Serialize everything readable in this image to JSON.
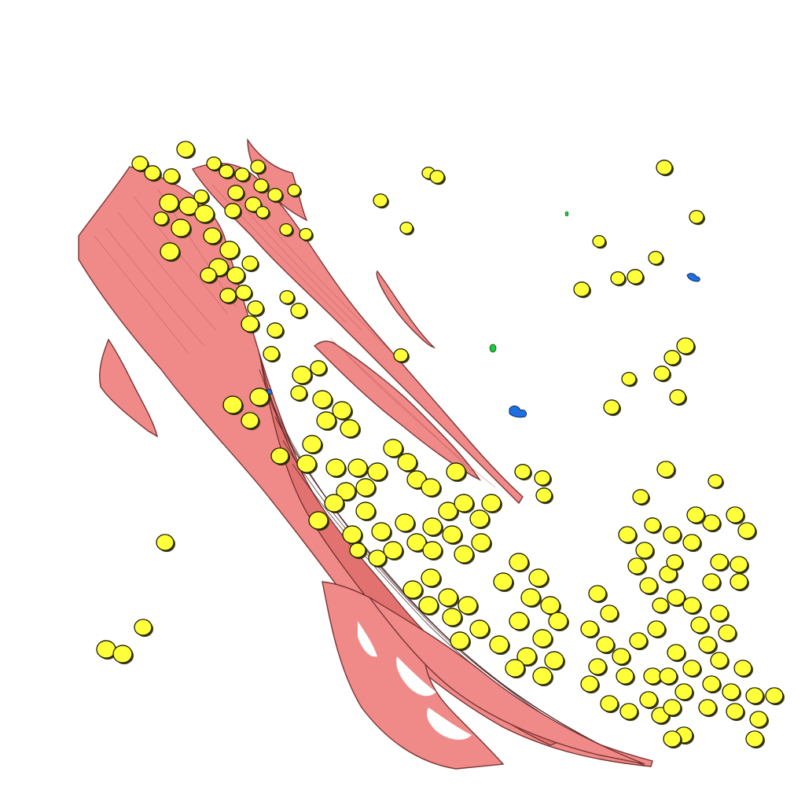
{
  "scene": {
    "background": "#ffffff",
    "structure_colors": {
      "muscle_fibers": "#f08a88",
      "yellow_cells": "#ffff3a",
      "blue_objects": "#1f6fe0",
      "green_objects": "#22c43a"
    }
  }
}
